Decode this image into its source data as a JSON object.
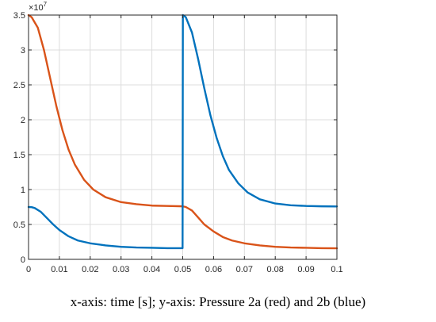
{
  "caption": "x-axis: time [s]; y-axis: Pressure 2a (red) and 2b (blue)",
  "chart_data": {
    "type": "line",
    "xlim": [
      0,
      0.1
    ],
    "ylim": [
      0,
      35000000
    ],
    "x_ticks": [
      "0",
      "0.01",
      "0.02",
      "0.03",
      "0.04",
      "0.05",
      "0.06",
      "0.07",
      "0.08",
      "0.09",
      "0.1"
    ],
    "y_ticks": [
      "0",
      "0.5",
      "1",
      "1.5",
      "2",
      "2.5",
      "3",
      "3.5"
    ],
    "y_multiplier_base": "×10",
    "y_multiplier_exp": "7",
    "grid": true,
    "series": [
      {
        "color": "#D95319",
        "x": [
          0,
          0.001,
          0.003,
          0.005,
          0.007,
          0.009,
          0.011,
          0.013,
          0.015,
          0.018,
          0.021,
          0.025,
          0.03,
          0.035,
          0.04,
          0.045,
          0.05,
          0.051,
          0.053,
          0.055,
          0.057,
          0.06,
          0.063,
          0.066,
          0.07,
          0.075,
          0.08,
          0.085,
          0.09,
          0.095,
          0.1
        ],
        "y": [
          35000000,
          34700000,
          33200000,
          30000000,
          26000000,
          22000000,
          18500000,
          15700000,
          13600000,
          11400000,
          10000000,
          8900000,
          8200000,
          7900000,
          7700000,
          7650000,
          7600000,
          7500000,
          7000000,
          6000000,
          5000000,
          4000000,
          3200000,
          2700000,
          2300000,
          2000000,
          1800000,
          1700000,
          1650000,
          1600000,
          1580000
        ]
      },
      {
        "color": "#0072BD",
        "x": [
          0,
          0.001,
          0.002,
          0.004,
          0.006,
          0.008,
          0.01,
          0.013,
          0.016,
          0.02,
          0.025,
          0.03,
          0.035,
          0.04,
          0.045,
          0.04995,
          0.05,
          0.05005,
          0.051,
          0.053,
          0.055,
          0.057,
          0.059,
          0.061,
          0.063,
          0.065,
          0.068,
          0.071,
          0.075,
          0.08,
          0.085,
          0.09,
          0.095,
          0.1
        ],
        "y": [
          7500000,
          7480000,
          7350000,
          6800000,
          5900000,
          5000000,
          4200000,
          3300000,
          2700000,
          2300000,
          2000000,
          1800000,
          1700000,
          1650000,
          1600000,
          1600000,
          18000000,
          35000000,
          34700000,
          32500000,
          28700000,
          24500000,
          20600000,
          17400000,
          14800000,
          12800000,
          10900000,
          9600000,
          8600000,
          8000000,
          7750000,
          7650000,
          7600000,
          7580000
        ]
      }
    ]
  }
}
